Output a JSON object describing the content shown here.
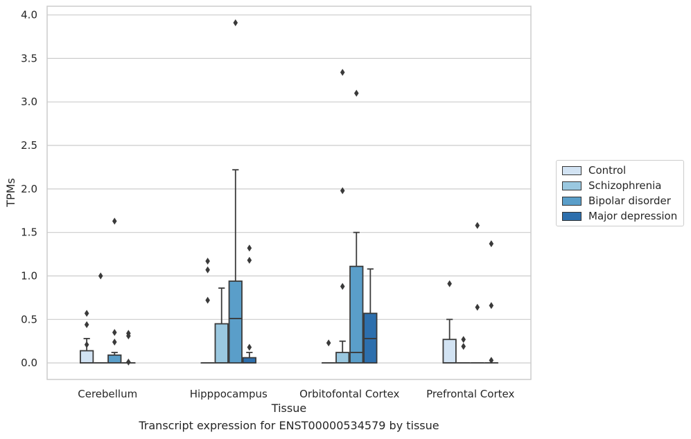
{
  "chart_data": {
    "type": "box",
    "title": "",
    "caption": "Transcript expression for ENST00000534579 by tissue",
    "xlabel": "Tissue",
    "ylabel": "TPMs",
    "ylim": [
      -0.19,
      4.1
    ],
    "yticks": [
      "0.0",
      "0.5",
      "1.0",
      "1.5",
      "2.0",
      "2.5",
      "3.0",
      "3.5",
      "4.0"
    ],
    "grid": true,
    "legend_position": "right",
    "categories": [
      "Cerebellum",
      "Hipppocampus",
      "Orbitofontal Cortex",
      "Prefrontal Cortex"
    ],
    "series": [
      {
        "name": "Control",
        "color": "#d2e3f3",
        "boxes": [
          {
            "q1": 0.0,
            "median": 0.0,
            "q3": 0.14,
            "whisker_low": 0.0,
            "whisker_high": 0.28,
            "outliers": [
              0.57,
              0.44,
              0.21
            ]
          },
          {
            "q1": 0.0,
            "median": 0.0,
            "q3": 0.0,
            "whisker_low": 0.0,
            "whisker_high": 0.0,
            "outliers": [
              1.17,
              1.07,
              0.72
            ]
          },
          {
            "q1": 0.0,
            "median": 0.0,
            "q3": 0.0,
            "whisker_low": 0.0,
            "whisker_high": 0.0,
            "outliers": [
              0.23
            ]
          },
          {
            "q1": 0.0,
            "median": 0.0,
            "q3": 0.27,
            "whisker_low": 0.0,
            "whisker_high": 0.5,
            "outliers": [
              0.91
            ]
          }
        ]
      },
      {
        "name": "Schizophrenia",
        "color": "#9ac8e0",
        "boxes": [
          {
            "q1": 0.0,
            "median": 0.0,
            "q3": 0.0,
            "whisker_low": 0.0,
            "whisker_high": 0.0,
            "outliers": [
              1.0
            ]
          },
          {
            "q1": 0.0,
            "median": 0.0,
            "q3": 0.45,
            "whisker_low": 0.0,
            "whisker_high": 0.86,
            "outliers": []
          },
          {
            "q1": 0.0,
            "median": 0.0,
            "q3": 0.12,
            "whisker_low": 0.0,
            "whisker_high": 0.25,
            "outliers": [
              3.34,
              1.98,
              0.88
            ]
          },
          {
            "q1": 0.0,
            "median": 0.0,
            "q3": 0.0,
            "whisker_low": 0.0,
            "whisker_high": 0.0,
            "outliers": [
              0.27,
              0.19
            ]
          }
        ]
      },
      {
        "name": "Bipolar disorder",
        "color": "#5a9ec9",
        "boxes": [
          {
            "q1": 0.0,
            "median": 0.0,
            "q3": 0.09,
            "whisker_low": 0.0,
            "whisker_high": 0.12,
            "outliers": [
              1.63,
              0.35,
              0.24
            ]
          },
          {
            "q1": 0.0,
            "median": 0.51,
            "q3": 0.94,
            "whisker_low": 0.0,
            "whisker_high": 2.22,
            "outliers": [
              3.91
            ]
          },
          {
            "q1": 0.0,
            "median": 0.12,
            "q3": 1.11,
            "whisker_low": 0.0,
            "whisker_high": 1.5,
            "outliers": [
              3.1
            ]
          },
          {
            "q1": 0.0,
            "median": 0.0,
            "q3": 0.0,
            "whisker_low": 0.0,
            "whisker_high": 0.0,
            "outliers": [
              1.58,
              0.64
            ]
          }
        ]
      },
      {
        "name": "Major depression",
        "color": "#2d6fad",
        "boxes": [
          {
            "q1": 0.0,
            "median": 0.0,
            "q3": 0.0,
            "whisker_low": 0.0,
            "whisker_high": 0.0,
            "outliers": [
              0.34,
              0.31,
              0.01
            ]
          },
          {
            "q1": 0.0,
            "median": 0.0,
            "q3": 0.06,
            "whisker_low": 0.0,
            "whisker_high": 0.12,
            "outliers": [
              1.32,
              1.18,
              0.18
            ]
          },
          {
            "q1": 0.0,
            "median": 0.28,
            "q3": 0.57,
            "whisker_low": 0.0,
            "whisker_high": 1.08,
            "outliers": []
          },
          {
            "q1": 0.0,
            "median": 0.0,
            "q3": 0.0,
            "whisker_low": 0.0,
            "whisker_high": 0.0,
            "outliers": [
              1.37,
              0.66,
              0.03
            ]
          }
        ]
      }
    ]
  }
}
